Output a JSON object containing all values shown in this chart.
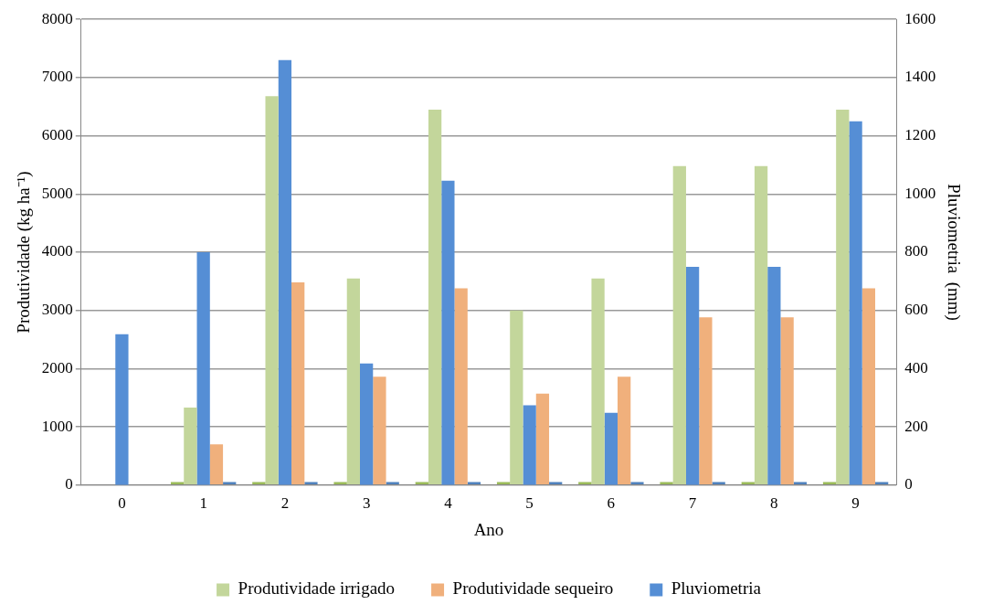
{
  "chart_data": {
    "type": "bar",
    "xlabel": "Ano",
    "ylabel": "Produtividade (kg ha⁻¹)",
    "y2label": "Pluviometria  (mm)",
    "categories": [
      "0",
      "1",
      "2",
      "3",
      "4",
      "5",
      "6",
      "7",
      "8",
      "9"
    ],
    "series": [
      {
        "color": "#9bbb59",
        "values": [
          null,
          50,
          50,
          50,
          50,
          50,
          50,
          50,
          50,
          50
        ]
      },
      {
        "name": "Produtividade irrigado",
        "color": "#c3d69b",
        "values": [
          null,
          1330,
          6680,
          3550,
          6450,
          3000,
          3550,
          5480,
          5480,
          6450
        ]
      },
      {
        "name": "Pluviometria",
        "color": "#558ed5",
        "axis": "y2",
        "values": [
          518,
          800,
          1460,
          418,
          1046,
          274,
          248,
          750,
          750,
          1250
        ]
      },
      {
        "name": "Produtividade sequeiro",
        "color": "#f0b07c",
        "values": [
          null,
          700,
          3480,
          1860,
          3380,
          1570,
          1860,
          2880,
          2880,
          3380
        ]
      },
      {
        "color": "#4f81bd",
        "values": [
          null,
          50,
          50,
          50,
          50,
          50,
          50,
          50,
          50,
          50
        ]
      }
    ],
    "ylim": [
      0,
      8000
    ],
    "yticks": [
      0,
      1000,
      2000,
      3000,
      4000,
      5000,
      6000,
      7000,
      8000
    ],
    "y2lim": [
      0,
      1600
    ],
    "y2ticks": [
      0,
      200,
      400,
      600,
      800,
      1000,
      1200,
      1400,
      1600
    ],
    "grid": "y",
    "legend": "bottom"
  }
}
